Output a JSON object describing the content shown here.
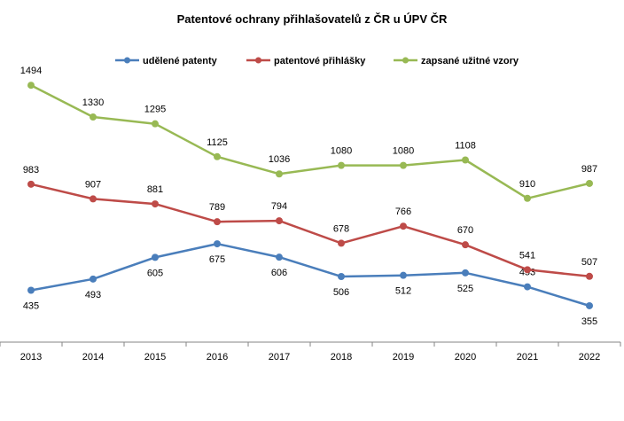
{
  "chart_data": {
    "type": "line",
    "title": "Patentové ochrany  přihlašovatelů  z ČR  u ÚPV ČR",
    "xlabel": "",
    "ylabel": "",
    "ylim": [
      0,
      1600
    ],
    "grid": false,
    "legend_position": "top",
    "categories": [
      "2013",
      "2014",
      "2015",
      "2016",
      "2017",
      "2018",
      "2019",
      "2020",
      "2021",
      "2022"
    ],
    "series": [
      {
        "name": "udělené patenty",
        "color": "#4A7EBB",
        "values": [
          435,
          493,
          605,
          675,
          606,
          506,
          512,
          525,
          453,
          355
        ],
        "label_positions": [
          "below",
          "below",
          "below",
          "below",
          "below",
          "below",
          "below",
          "below",
          "above",
          "below"
        ]
      },
      {
        "name": "patentové přihlášky",
        "color": "#BE4B48",
        "values": [
          983,
          907,
          881,
          789,
          794,
          678,
          766,
          670,
          541,
          507
        ],
        "label_positions": [
          "above",
          "above",
          "above",
          "above",
          "above",
          "above",
          "above",
          "above",
          "above",
          "above"
        ]
      },
      {
        "name": "zapsané užitné vzory",
        "color": "#98B954",
        "values": [
          1494,
          1330,
          1295,
          1125,
          1036,
          1080,
          1080,
          1108,
          910,
          987
        ],
        "label_positions": [
          "above",
          "above",
          "above",
          "above",
          "above",
          "above",
          "above",
          "above",
          "above",
          "above"
        ]
      }
    ]
  }
}
